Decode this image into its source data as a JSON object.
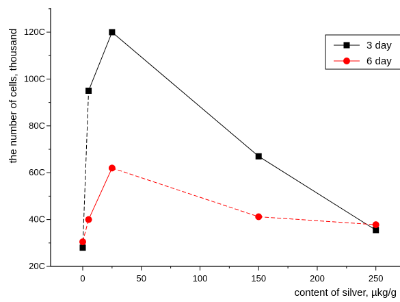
{
  "chart_data": {
    "type": "line",
    "xlabel": "content of silver, µkg/g",
    "ylabel": "the number of cells, thousand",
    "xlim": [
      -10,
      270
    ],
    "ylim": [
      200,
      1300
    ],
    "x_ticks": [
      0,
      50,
      100,
      150,
      200,
      250
    ],
    "x_tick_labels": [
      "0",
      "50",
      "100",
      "150",
      "200",
      "250"
    ],
    "y_ticks": [
      200,
      400,
      600,
      800,
      1000,
      1200
    ],
    "y_tick_labels": [
      "20C",
      "40C",
      "60C",
      "80C",
      "100C",
      "120C"
    ],
    "grid": false,
    "legend_position": "top-right",
    "series": [
      {
        "name": "3 day",
        "color": "#000000",
        "marker": "square",
        "line_style": "mixed",
        "x": [
          0,
          5,
          25,
          150,
          250
        ],
        "y": [
          280,
          950,
          1200,
          670,
          355
        ]
      },
      {
        "name": "6 day",
        "color": "#ff0000",
        "marker": "circle",
        "line_style": "mixed",
        "x": [
          0,
          5,
          25,
          150,
          250
        ],
        "y": [
          305,
          400,
          620,
          412,
          378
        ]
      }
    ]
  }
}
